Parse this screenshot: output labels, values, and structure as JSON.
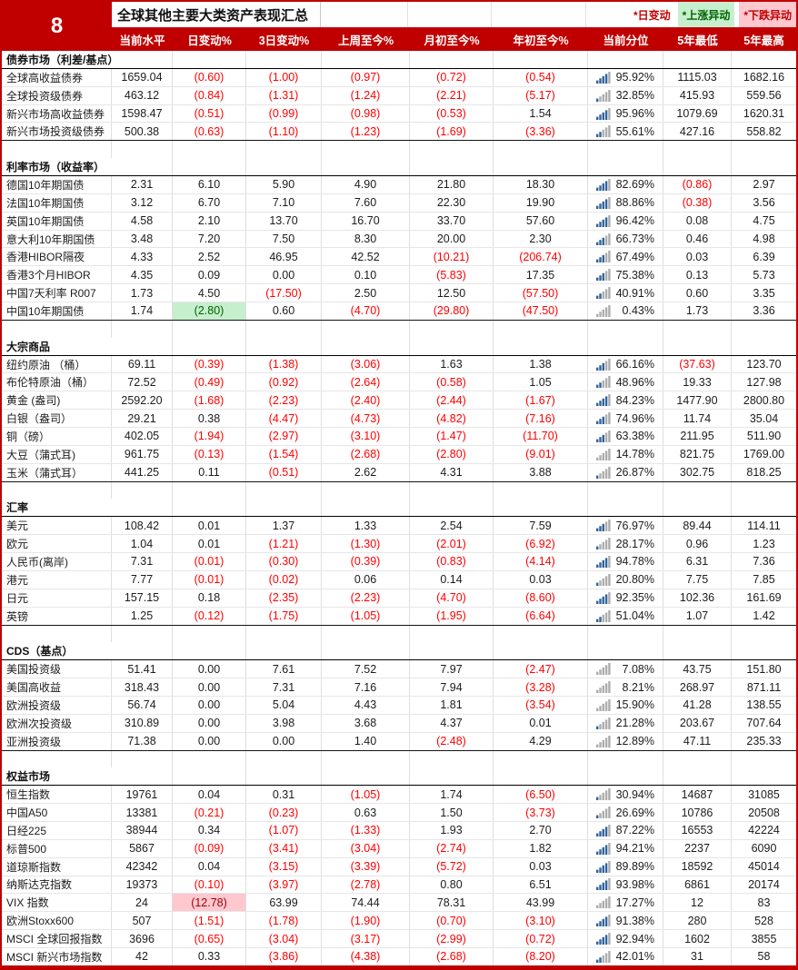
{
  "page": {
    "index_label": "8",
    "title": "全球其他主要大类资产表现汇总"
  },
  "legend": {
    "day": "*日变动",
    "up": "*上涨异动",
    "down": "*下跌异动"
  },
  "columns": [
    "当前水平",
    "日变动%",
    "3日变动%",
    "上周至今%",
    "月初至今%",
    "年初至今%",
    "当前分位",
    "5年最低",
    "5年最高"
  ],
  "colors": {
    "accent_red": "#C00000",
    "negative_text": "#FF0000",
    "good_bg": "#C6EFCE",
    "good_text": "#006100",
    "bad_bg": "#FFC7CE",
    "bad_text": "#9C0006",
    "percentile_bar_filled": "#31639C",
    "percentile_bar_empty": "#ADADAD"
  },
  "icons": {
    "percentile": "percentile-bars-icon"
  },
  "sections": [
    {
      "title": "债券市场（利差/基点）",
      "rows": [
        {
          "name": "全球高收益债券",
          "values": [
            "1659.04",
            "(0.60)",
            "(1.00)",
            "(0.97)",
            "(0.72)",
            "(0.54)",
            "95.92%",
            "1115.03",
            "1682.16"
          ]
        },
        {
          "name": "全球投资级债券",
          "values": [
            "463.12",
            "(0.84)",
            "(1.31)",
            "(1.24)",
            "(2.21)",
            "(5.17)",
            "32.85%",
            "415.93",
            "559.56"
          ]
        },
        {
          "name": "新兴市场高收益债券",
          "values": [
            "1598.47",
            "(0.51)",
            "(0.99)",
            "(0.98)",
            "(0.53)",
            "1.54",
            "95.96%",
            "1079.69",
            "1620.31"
          ]
        },
        {
          "name": "新兴市场投资级债券",
          "values": [
            "500.38",
            "(0.63)",
            "(1.10)",
            "(1.23)",
            "(1.69)",
            "(3.36)",
            "55.61%",
            "427.16",
            "558.82"
          ]
        }
      ]
    },
    {
      "title": "利率市场（收益率）",
      "rows": [
        {
          "name": "德国10年期国债",
          "values": [
            "2.31",
            "6.10",
            "5.90",
            "4.90",
            "21.80",
            "18.30",
            "82.69%",
            "(0.86)",
            "2.97"
          ]
        },
        {
          "name": "法国10年期国债",
          "values": [
            "3.12",
            "6.70",
            "7.10",
            "7.60",
            "22.30",
            "19.90",
            "88.86%",
            "(0.38)",
            "3.56"
          ]
        },
        {
          "name": "英国10年期国债",
          "values": [
            "4.58",
            "2.10",
            "13.70",
            "16.70",
            "33.70",
            "57.60",
            "96.42%",
            "0.08",
            "4.75"
          ]
        },
        {
          "name": "意大利10年期国债",
          "values": [
            "3.48",
            "7.20",
            "7.50",
            "8.30",
            "20.00",
            "2.30",
            "66.73%",
            "0.46",
            "4.98"
          ]
        },
        {
          "name": "香港HIBOR隔夜",
          "values": [
            "4.33",
            "2.52",
            "46.95",
            "42.52",
            "(10.21)",
            "(206.74)",
            "67.49%",
            "0.03",
            "6.39"
          ]
        },
        {
          "name": "香港3个月HIBOR",
          "values": [
            "4.35",
            "0.09",
            "0.00",
            "0.10",
            "(5.83)",
            "17.35",
            "75.38%",
            "0.13",
            "5.73"
          ]
        },
        {
          "name": "中国7天利率 R007",
          "values": [
            "1.73",
            "4.50",
            "(17.50)",
            "2.50",
            "12.50",
            "(57.50)",
            "40.91%",
            "0.60",
            "3.35"
          ]
        },
        {
          "name": "中国10年期国债",
          "values": [
            "1.74",
            "(2.80)",
            "0.60",
            "(4.70)",
            "(29.80)",
            "(47.50)",
            "0.43%",
            "1.73",
            "3.36"
          ],
          "highlight": {
            "index": 1,
            "kind": "up"
          }
        }
      ]
    },
    {
      "title": "大宗商品",
      "rows": [
        {
          "name": "纽约原油 （桶）",
          "values": [
            "69.11",
            "(0.39)",
            "(1.38)",
            "(3.06)",
            "1.63",
            "1.38",
            "66.16%",
            "(37.63)",
            "123.70"
          ]
        },
        {
          "name": "布伦特原油（桶）",
          "values": [
            "72.52",
            "(0.49)",
            "(0.92)",
            "(2.64)",
            "(0.58)",
            "1.05",
            "48.96%",
            "19.33",
            "127.98"
          ]
        },
        {
          "name": "黄金 (盎司)",
          "values": [
            "2592.20",
            "(1.68)",
            "(2.23)",
            "(2.40)",
            "(2.44)",
            "(1.67)",
            "84.23%",
            "1477.90",
            "2800.80"
          ]
        },
        {
          "name": "白银（盎司）",
          "values": [
            "29.21",
            "0.38",
            "(4.47)",
            "(4.73)",
            "(4.82)",
            "(7.16)",
            "74.96%",
            "11.74",
            "35.04"
          ]
        },
        {
          "name": "铜（磅）",
          "values": [
            "402.05",
            "(1.94)",
            "(2.97)",
            "(3.10)",
            "(1.47)",
            "(11.70)",
            "63.38%",
            "211.95",
            "511.90"
          ]
        },
        {
          "name": "大豆（蒲式耳)",
          "values": [
            "961.75",
            "(0.13)",
            "(1.54)",
            "(2.68)",
            "(2.80)",
            "(9.01)",
            "14.78%",
            "821.75",
            "1769.00"
          ]
        },
        {
          "name": "玉米（蒲式耳）",
          "values": [
            "441.25",
            "0.11",
            "(0.51)",
            "2.62",
            "4.31",
            "3.88",
            "26.87%",
            "302.75",
            "818.25"
          ]
        }
      ]
    },
    {
      "title": "汇率",
      "rows": [
        {
          "name": "美元",
          "values": [
            "108.42",
            "0.01",
            "1.37",
            "1.33",
            "2.54",
            "7.59",
            "76.97%",
            "89.44",
            "114.11"
          ]
        },
        {
          "name": "欧元",
          "values": [
            "1.04",
            "0.01",
            "(1.21)",
            "(1.30)",
            "(2.01)",
            "(6.92)",
            "28.17%",
            "0.96",
            "1.23"
          ]
        },
        {
          "name": "人民币(离岸)",
          "values": [
            "7.31",
            "(0.01)",
            "(0.30)",
            "(0.39)",
            "(0.83)",
            "(4.14)",
            "94.78%",
            "6.31",
            "7.36"
          ]
        },
        {
          "name": "港元",
          "values": [
            "7.77",
            "(0.01)",
            "(0.02)",
            "0.06",
            "0.14",
            "0.03",
            "20.80%",
            "7.75",
            "7.85"
          ]
        },
        {
          "name": "日元",
          "values": [
            "157.15",
            "0.18",
            "(2.35)",
            "(2.23)",
            "(4.70)",
            "(8.60)",
            "92.35%",
            "102.36",
            "161.69"
          ]
        },
        {
          "name": "英镑",
          "values": [
            "1.25",
            "(0.12)",
            "(1.75)",
            "(1.05)",
            "(1.95)",
            "(6.64)",
            "51.04%",
            "1.07",
            "1.42"
          ]
        }
      ]
    },
    {
      "title": "CDS（基点）",
      "rows": [
        {
          "name": "美国投资级",
          "values": [
            "51.41",
            "0.00",
            "7.61",
            "7.52",
            "7.97",
            "(2.47)",
            "7.08%",
            "43.75",
            "151.80"
          ]
        },
        {
          "name": "美国高收益",
          "values": [
            "318.43",
            "0.00",
            "7.31",
            "7.16",
            "7.94",
            "(3.28)",
            "8.21%",
            "268.97",
            "871.11"
          ]
        },
        {
          "name": "欧洲投资级",
          "values": [
            "56.74",
            "0.00",
            "5.04",
            "4.43",
            "1.81",
            "(3.54)",
            "15.90%",
            "41.28",
            "138.55"
          ]
        },
        {
          "name": "欧洲次投资级",
          "values": [
            "310.89",
            "0.00",
            "3.98",
            "3.68",
            "4.37",
            "0.01",
            "21.28%",
            "203.67",
            "707.64"
          ]
        },
        {
          "name": "亚洲投资级",
          "values": [
            "71.38",
            "0.00",
            "0.00",
            "1.40",
            "(2.48)",
            "4.29",
            "12.89%",
            "47.11",
            "235.33"
          ]
        }
      ]
    },
    {
      "title": "权益市场",
      "rows": [
        {
          "name": "恒生指数",
          "values": [
            "19761",
            "0.04",
            "0.31",
            "(1.05)",
            "1.74",
            "(6.50)",
            "30.94%",
            "14687",
            "31085"
          ]
        },
        {
          "name": "中国A50",
          "values": [
            "13381",
            "(0.21)",
            "(0.23)",
            "0.63",
            "1.50",
            "(3.73)",
            "26.69%",
            "10786",
            "20508"
          ]
        },
        {
          "name": "日经225",
          "values": [
            "38944",
            "0.34",
            "(1.07)",
            "(1.33)",
            "1.93",
            "2.70",
            "87.22%",
            "16553",
            "42224"
          ]
        },
        {
          "name": "标普500",
          "values": [
            "5867",
            "(0.09)",
            "(3.41)",
            "(3.04)",
            "(2.74)",
            "1.82",
            "94.21%",
            "2237",
            "6090"
          ]
        },
        {
          "name": "道琼斯指数",
          "values": [
            "42342",
            "0.04",
            "(3.15)",
            "(3.39)",
            "(5.72)",
            "0.03",
            "89.89%",
            "18592",
            "45014"
          ]
        },
        {
          "name": "纳斯达克指数",
          "values": [
            "19373",
            "(0.10)",
            "(3.97)",
            "(2.78)",
            "0.80",
            "6.51",
            "93.98%",
            "6861",
            "20174"
          ]
        },
        {
          "name": "VIX 指数",
          "values": [
            "24",
            "(12.78)",
            "63.99",
            "74.44",
            "78.31",
            "43.99",
            "17.27%",
            "12",
            "83"
          ],
          "highlight": {
            "index": 1,
            "kind": "down"
          }
        },
        {
          "name": "欧洲Stoxx600",
          "values": [
            "507",
            "(1.51)",
            "(1.78)",
            "(1.90)",
            "(0.70)",
            "(3.10)",
            "91.38%",
            "280",
            "528"
          ]
        },
        {
          "name": "MSCI 全球回报指数",
          "values": [
            "3696",
            "(0.65)",
            "(3.04)",
            "(3.17)",
            "(2.99)",
            "(0.72)",
            "92.94%",
            "1602",
            "3855"
          ]
        },
        {
          "name": "MSCI 新兴市场指数",
          "values": [
            "42",
            "0.33",
            "(3.86)",
            "(4.38)",
            "(2.68)",
            "(8.20)",
            "42.01%",
            "31",
            "58"
          ]
        }
      ]
    }
  ]
}
